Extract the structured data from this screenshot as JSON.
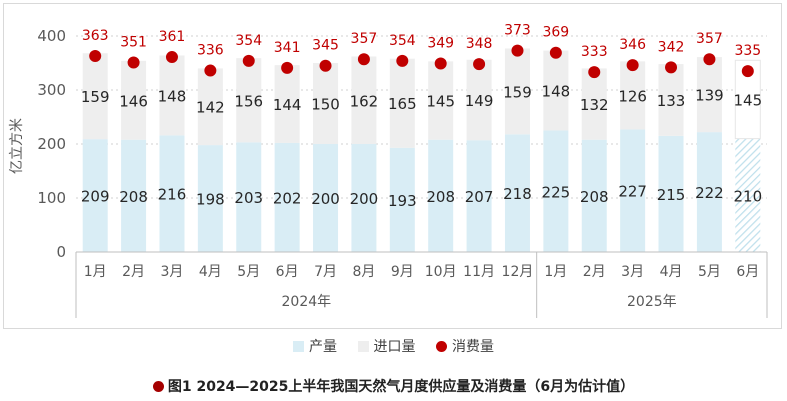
{
  "chart_data": {
    "type": "bar",
    "ylabel": "亿立方米",
    "ylim": [
      0,
      400
    ],
    "yticks": [
      0,
      100,
      200,
      300,
      400
    ],
    "categories": [
      "1月",
      "2月",
      "3月",
      "4月",
      "5月",
      "6月",
      "7月",
      "8月",
      "9月",
      "10月",
      "11月",
      "12月",
      "1月",
      "2月",
      "3月",
      "4月",
      "5月",
      "6月"
    ],
    "groups": [
      {
        "label": "2024年",
        "count": 12
      },
      {
        "label": "2025年",
        "count": 6
      }
    ],
    "series": [
      {
        "name": "产量",
        "kind": "stacked-bar",
        "color": "#d9edf5",
        "values": [
          209,
          208,
          216,
          198,
          203,
          202,
          200,
          200,
          193,
          208,
          207,
          218,
          225,
          208,
          227,
          215,
          222,
          210
        ]
      },
      {
        "name": "进口量",
        "kind": "stacked-bar",
        "color": "#eeeeee",
        "values": [
          159,
          146,
          148,
          142,
          156,
          144,
          150,
          162,
          165,
          145,
          149,
          159,
          148,
          132,
          126,
          133,
          139,
          145
        ]
      },
      {
        "name": "消费量",
        "kind": "dot",
        "color": "#c00000",
        "values": [
          363,
          351,
          361,
          336,
          354,
          341,
          345,
          357,
          354,
          349,
          348,
          373,
          369,
          333,
          346,
          342,
          357,
          335
        ]
      }
    ],
    "estimated_index": 17,
    "grid": "dotted horizontal",
    "legend_position": "bottom"
  },
  "caption": "图1 2024—2025上半年我国天然气月度供应量及消费量（6月为估计值）",
  "colors": {
    "production": "#d9edf5",
    "imports": "#eeeeee",
    "consumption": "#c00000",
    "value_text": "#262626",
    "consumption_text": "#c00000"
  }
}
